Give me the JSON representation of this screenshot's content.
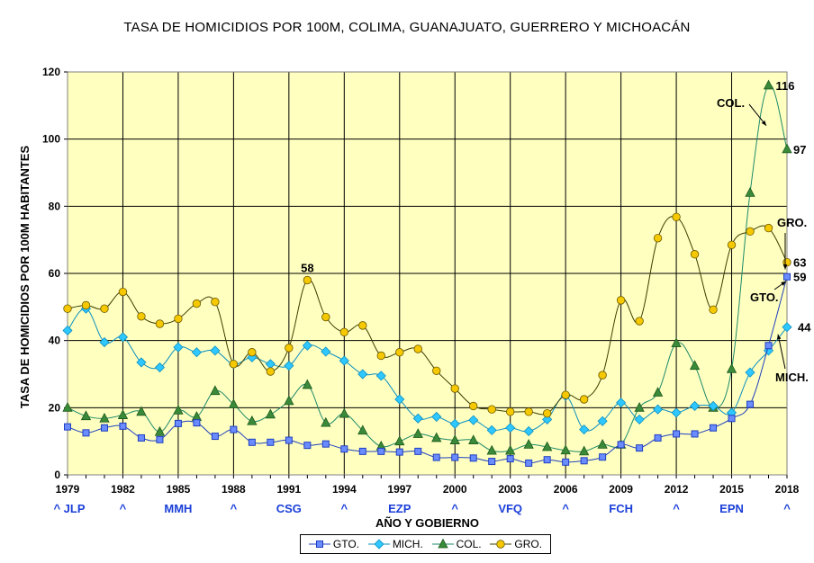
{
  "chart_data": {
    "type": "line",
    "title": "TASA DE HOMICIDIOS POR 100M, COLIMA, GUANAJUATO, GUERRERO Y MICHOACÁN",
    "xlabel": "AÑO Y GOBIERNO",
    "ylabel": "TASA DE HOMICIDIOS POR 100M HABITANTES",
    "ylim": [
      0,
      120
    ],
    "xlim": [
      1979,
      2018
    ],
    "yticks": [
      0,
      20,
      40,
      60,
      80,
      100,
      120
    ],
    "xticks": [
      1979,
      1982,
      1985,
      1988,
      1991,
      1994,
      1997,
      2000,
      2003,
      2006,
      2009,
      2012,
      2015,
      2018
    ],
    "grid": true,
    "legend_position": "bottom",
    "governments": [
      {
        "year": 1979,
        "label": "^ JLP"
      },
      {
        "year": 1982,
        "label": "^"
      },
      {
        "year": 1985,
        "label": "MMH"
      },
      {
        "year": 1988,
        "label": "^"
      },
      {
        "year": 1991,
        "label": "CSG"
      },
      {
        "year": 1994,
        "label": "^"
      },
      {
        "year": 1997,
        "label": "EZP"
      },
      {
        "year": 2000,
        "label": "^"
      },
      {
        "year": 2003,
        "label": "VFQ"
      },
      {
        "year": 2006,
        "label": "^"
      },
      {
        "year": 2009,
        "label": "FCH"
      },
      {
        "year": 2012,
        "label": "^"
      },
      {
        "year": 2015,
        "label": "EPN"
      },
      {
        "year": 2018,
        "label": "^"
      }
    ],
    "x": [
      1979,
      1980,
      1981,
      1982,
      1983,
      1984,
      1985,
      1986,
      1987,
      1988,
      1989,
      1990,
      1991,
      1992,
      1993,
      1994,
      1995,
      1996,
      1997,
      1998,
      1999,
      2000,
      2001,
      2002,
      2003,
      2004,
      2005,
      2006,
      2007,
      2008,
      2009,
      2010,
      2011,
      2012,
      2013,
      2014,
      2015,
      2016,
      2017,
      2018
    ],
    "series": [
      {
        "name": "GTO.",
        "color": "#1f3fbf",
        "fill": "#6b8cff",
        "marker": "square",
        "values": [
          14.3,
          12.5,
          14,
          14.5,
          11,
          10.5,
          15.3,
          15.5,
          11.5,
          13.5,
          9.7,
          9.7,
          10.3,
          8.8,
          9.2,
          7.7,
          7,
          7,
          6.8,
          7,
          5.2,
          5.2,
          5,
          4,
          4.8,
          3.5,
          4.5,
          3.8,
          4.2,
          5.3,
          9,
          8,
          11,
          12.2,
          12.2,
          14,
          16.8,
          21,
          38.5,
          59
        ]
      },
      {
        "name": "MICH.",
        "color": "#0b8fc0",
        "fill": "#2ec7ff",
        "marker": "diamond",
        "values": [
          43,
          49.5,
          39.5,
          41,
          33.5,
          32,
          38,
          36.5,
          37,
          33,
          35,
          33,
          32.5,
          38.5,
          36.7,
          34,
          30,
          29.5,
          22.5,
          16.8,
          17.3,
          15.2,
          16.3,
          13.3,
          14,
          13,
          16.5,
          23.5,
          13.5,
          16,
          21.5,
          16.5,
          19.5,
          18.5,
          20.5,
          20.5,
          18.5,
          30.5,
          37,
          44
        ]
      },
      {
        "name": "COL.",
        "color": "#1d8a6a",
        "fill": "#3a8a3a",
        "marker": "triangle",
        "values": [
          20,
          17.5,
          16.8,
          17.8,
          18.8,
          12.8,
          19.2,
          17.3,
          25,
          21,
          16,
          18,
          22,
          26.8,
          15.5,
          18.2,
          13.2,
          8.5,
          10,
          12.2,
          11,
          10.3,
          10.3,
          7.2,
          7.2,
          9,
          8.3,
          7.3,
          7,
          9,
          9,
          20,
          24.5,
          39.2,
          32.5,
          20,
          31.5,
          84,
          116,
          97
        ]
      },
      {
        "name": "GRO.",
        "color": "#3d3d00",
        "fill": "#f5c800",
        "marker": "circle",
        "values": [
          49.5,
          50.5,
          49.5,
          54.5,
          47.2,
          45,
          46.5,
          51,
          51.5,
          33,
          36.5,
          30.8,
          37.8,
          58,
          47,
          42.5,
          44.5,
          35.5,
          36.5,
          37.5,
          31,
          25.7,
          20.5,
          19.5,
          18.8,
          18.8,
          18.3,
          23.8,
          22.5,
          29.7,
          52,
          45.8,
          70.5,
          76.8,
          65.7,
          49.2,
          68.5,
          72.5,
          73.5,
          63.3
        ]
      }
    ],
    "annotations": [
      {
        "text": "58",
        "series": "GRO.",
        "x": 1992
      },
      {
        "text": "116",
        "series": "COL.",
        "x": 2017
      },
      {
        "text": "97",
        "series": "COL.",
        "x": 2018
      },
      {
        "text": "63",
        "series": "GRO.",
        "x": 2018
      },
      {
        "text": "59",
        "series": "GTO.",
        "x": 2018
      },
      {
        "text": "44",
        "series": "MICH.",
        "x": 2018
      },
      {
        "text": "COL.",
        "series": "COL."
      },
      {
        "text": "GRO.",
        "series": "GRO."
      },
      {
        "text": "GTO.",
        "series": "GTO."
      },
      {
        "text": "MICH.",
        "series": "MICH."
      }
    ]
  }
}
